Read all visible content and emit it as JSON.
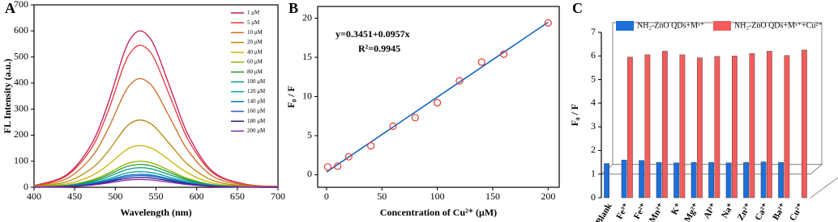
{
  "chart_data": [
    {
      "type": "line",
      "label": "A",
      "xlabel": "Wavelength (nm)",
      "ylabel": "FL Intensity (a.u.)",
      "x": [
        400,
        440,
        470,
        490,
        510,
        520,
        530,
        540,
        550,
        570,
        590,
        620,
        660,
        700
      ],
      "xlim": [
        400,
        700
      ],
      "ylim": [
        0,
        700
      ],
      "xticks": [
        400,
        450,
        500,
        550,
        600,
        650,
        700
      ],
      "yticks": [
        0,
        100,
        200,
        300,
        400,
        500,
        600,
        700
      ],
      "series": [
        {
          "name": "1 μM",
          "color": "#c2185b",
          "values": [
            6,
            48,
            162,
            312,
            510,
            576,
            600,
            582,
            528,
            360,
            198,
            60,
            12,
            3
          ]
        },
        {
          "name": "5 μM",
          "color": "#e53935",
          "values": [
            5,
            44,
            147,
            283,
            463,
            523,
            545,
            529,
            480,
            327,
            180,
            55,
            11,
            3
          ]
        },
        {
          "name": "10 μM",
          "color": "#d2691e",
          "values": [
            4,
            33,
            113,
            217,
            354,
            400,
            417,
            404,
            367,
            250,
            138,
            42,
            8,
            2
          ]
        },
        {
          "name": "20 μM",
          "color": "#b8860b",
          "values": [
            3,
            21,
            70,
            134,
            219,
            248,
            258,
            250,
            227,
            155,
            85,
            26,
            5,
            1
          ]
        },
        {
          "name": "40 μM",
          "color": "#c8b400",
          "values": [
            2,
            13,
            43,
            83,
            136,
            154,
            160,
            155,
            141,
            96,
            53,
            16,
            3,
            1
          ]
        },
        {
          "name": "60 μM",
          "color": "#8db600",
          "values": [
            1,
            8,
            27,
            52,
            85,
            96,
            100,
            97,
            88,
            60,
            33,
            10,
            2,
            1
          ]
        },
        {
          "name": "80 μM",
          "color": "#2e9b2e",
          "values": [
            1,
            7,
            24,
            46,
            75,
            84,
            88,
            85,
            77,
            53,
            29,
            9,
            2,
            0
          ]
        },
        {
          "name": "100 μM",
          "color": "#00a080",
          "values": [
            1,
            6,
            20,
            39,
            64,
            72,
            75,
            73,
            66,
            45,
            25,
            8,
            2,
            0
          ]
        },
        {
          "name": "120 μM",
          "color": "#00a0a0",
          "values": [
            1,
            5,
            16,
            31,
            51,
            58,
            60,
            58,
            53,
            36,
            20,
            6,
            1,
            0
          ]
        },
        {
          "name": "140 μM",
          "color": "#0077c8",
          "values": [
            1,
            4,
            14,
            26,
            43,
            48,
            50,
            49,
            44,
            30,
            17,
            5,
            1,
            0
          ]
        },
        {
          "name": "160 μM",
          "color": "#3355cc",
          "values": [
            0,
            4,
            12,
            23,
            38,
            43,
            45,
            44,
            40,
            27,
            15,
            5,
            1,
            0
          ]
        },
        {
          "name": "180 μM",
          "color": "#1a237e",
          "values": [
            0,
            3,
            10,
            20,
            32,
            36,
            38,
            37,
            33,
            23,
            13,
            4,
            1,
            0
          ]
        },
        {
          "name": "200 μM",
          "color": "#8e24aa",
          "values": [
            0,
            2,
            8,
            16,
            26,
            29,
            30,
            29,
            26,
            18,
            10,
            3,
            1,
            0
          ]
        }
      ]
    },
    {
      "type": "scatter",
      "label": "B",
      "xlabel": "Concentration of Cu²⁺ (μM)",
      "ylabel": "F₀ / F",
      "annotations": [
        "y=0.3451+0.0957x",
        "R²=0.9945"
      ],
      "x": [
        1,
        10,
        20,
        40,
        60,
        80,
        100,
        120,
        140,
        160,
        200
      ],
      "values": [
        1.0,
        1.1,
        2.3,
        3.7,
        6.2,
        7.3,
        9.2,
        12.0,
        14.4,
        15.4,
        19.4
      ],
      "color": "#e53935",
      "fit": {
        "x": [
          0,
          200
        ],
        "values": [
          0.35,
          19.49
        ],
        "color": "#1565c0"
      },
      "xlim": [
        -8,
        210
      ],
      "ylim": [
        -1.6,
        21.5
      ],
      "xticks": [
        0,
        50,
        100,
        150,
        200
      ],
      "yticks": [
        0,
        5,
        10,
        15,
        20
      ]
    },
    {
      "type": "bar",
      "label": "C",
      "ylabel": "F₀ / F",
      "categories": [
        "Blank",
        "Fe³⁺",
        "Fe²⁺",
        "Mn²⁺",
        "K⁺",
        "Mg²⁺",
        "Al³⁺",
        "Na⁺",
        "Zn²⁺",
        "Ca²⁺",
        "Ba²⁺",
        "Cu²⁺"
      ],
      "series": [
        {
          "name": "NH₂-ZnO QDs+Mˣ⁺",
          "color": "#1e6fd9",
          "values": [
            1.45,
            1.6,
            1.58,
            1.5,
            1.48,
            1.5,
            1.5,
            1.48,
            1.5,
            1.52,
            1.5,
            null
          ]
        },
        {
          "name": "NH₂-ZnO QDs+Mˣ⁺+Cu²⁺",
          "color": "#f25c5c",
          "values": [
            null,
            5.95,
            6.05,
            6.2,
            6.05,
            5.92,
            5.98,
            6.0,
            6.1,
            6.2,
            6.02,
            6.25
          ]
        }
      ],
      "ylim": [
        0,
        7
      ],
      "yticks": [
        0,
        1,
        2,
        3,
        4,
        5,
        6,
        7
      ]
    }
  ]
}
